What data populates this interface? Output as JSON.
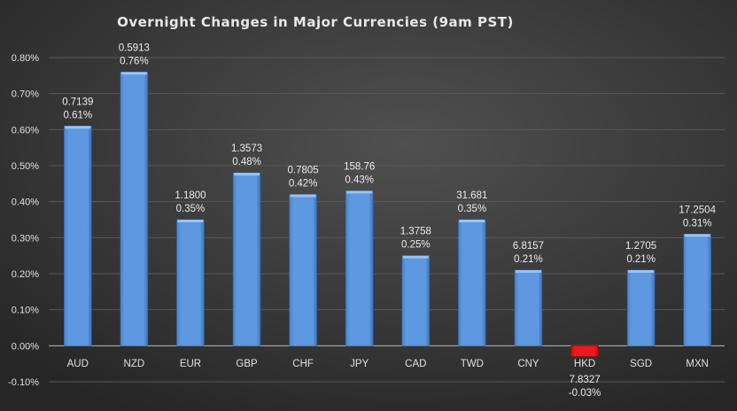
{
  "chart_data": {
    "type": "bar",
    "title": "Overnight Changes in Major Currencies (9am PST)",
    "xlabel": "",
    "ylabel": "",
    "ylim": [
      -0.1,
      0.8
    ],
    "yticks": [
      "-0.10%",
      "0.00%",
      "0.10%",
      "0.20%",
      "0.30%",
      "0.40%",
      "0.50%",
      "0.60%",
      "0.70%",
      "0.80%"
    ],
    "grid": true,
    "legend": "none",
    "categories": [
      "AUD",
      "NZD",
      "EUR",
      "GBP",
      "CHF",
      "JPY",
      "CAD",
      "TWD",
      "CNY",
      "HKD",
      "SGD",
      "MXN"
    ],
    "values": [
      0.61,
      0.76,
      0.35,
      0.48,
      0.42,
      0.43,
      0.25,
      0.35,
      0.21,
      -0.03,
      0.21,
      0.31
    ],
    "value_labels": [
      "0.61%",
      "0.76%",
      "0.35%",
      "0.48%",
      "0.42%",
      "0.43%",
      "0.25%",
      "0.35%",
      "0.21%",
      "-0.03%",
      "0.21%",
      "0.31%"
    ],
    "rate_labels": [
      "0.7139",
      "0.5913",
      "1.1800",
      "1.3573",
      "0.7805",
      "158.76",
      "1.3758",
      "31.681",
      "6.8157",
      "7.8327",
      "1.2705",
      "17.2504"
    ],
    "colors": {
      "positive": "#5b95dc",
      "negative": "#e8141a",
      "background": "#3a3a3a",
      "grid": "#585858"
    }
  }
}
